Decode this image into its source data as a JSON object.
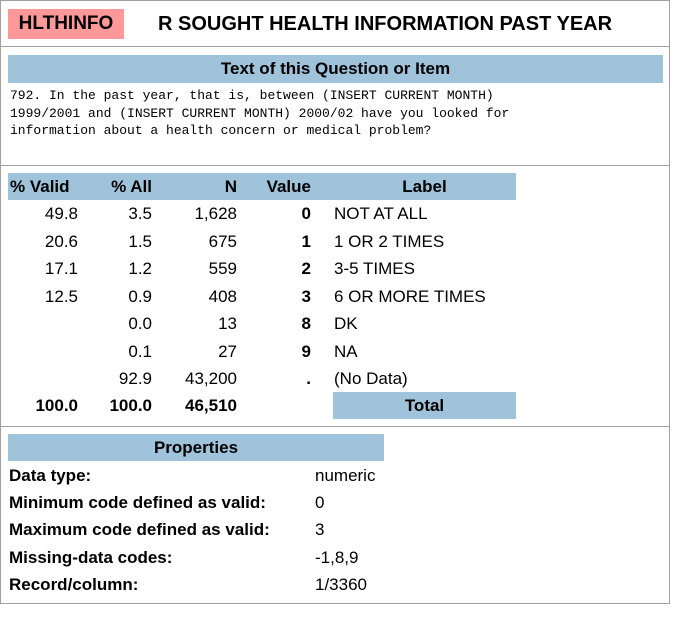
{
  "variable": {
    "name": "HLTHINFO",
    "title": "R SOUGHT HEALTH INFORMATION PAST YEAR",
    "name_color": "#ff9999"
  },
  "question": {
    "header": "Text of this Question or Item",
    "text": "792. In the past year, that is, between (INSERT CURRENT MONTH)\n1999/2001 and (INSERT CURRENT MONTH) 2000/02 have you looked for\ninformation about a health concern or medical problem?"
  },
  "frequency_table": {
    "headers": {
      "valid": "% Valid",
      "all": "% All",
      "n": "N",
      "value": "Value",
      "label": "Label"
    },
    "rows": [
      {
        "valid": "49.8",
        "all": "3.5",
        "n": "1,628",
        "value": "0",
        "label": "NOT AT ALL"
      },
      {
        "valid": "20.6",
        "all": "1.5",
        "n": "675",
        "value": "1",
        "label": "1 OR 2 TIMES"
      },
      {
        "valid": "17.1",
        "all": "1.2",
        "n": "559",
        "value": "2",
        "label": "3-5 TIMES"
      },
      {
        "valid": "12.5",
        "all": "0.9",
        "n": "408",
        "value": "3",
        "label": "6 OR MORE TIMES"
      },
      {
        "valid": "",
        "all": "0.0",
        "n": "13",
        "value": "8",
        "label": "DK"
      },
      {
        "valid": "",
        "all": "0.1",
        "n": "27",
        "value": "9",
        "label": "NA"
      },
      {
        "valid": "",
        "all": "92.9",
        "n": "43,200",
        "value": ".",
        "label": "(No Data)"
      }
    ],
    "total": {
      "valid": "100.0",
      "all": "100.0",
      "n": "46,510",
      "label": "Total"
    }
  },
  "properties": {
    "header": "Properties",
    "items": [
      {
        "label": "Data type:",
        "value": "numeric"
      },
      {
        "label": "Minimum code defined as valid:",
        "value": "0"
      },
      {
        "label": "Maximum code defined as valid:",
        "value": "3"
      },
      {
        "label": "Missing-data codes:",
        "value": "-1,8,9"
      },
      {
        "label": "Record/column:",
        "value": "1/3360"
      }
    ]
  },
  "colors": {
    "header_bar": "#9ec3da",
    "border": "#a0a0a0"
  }
}
